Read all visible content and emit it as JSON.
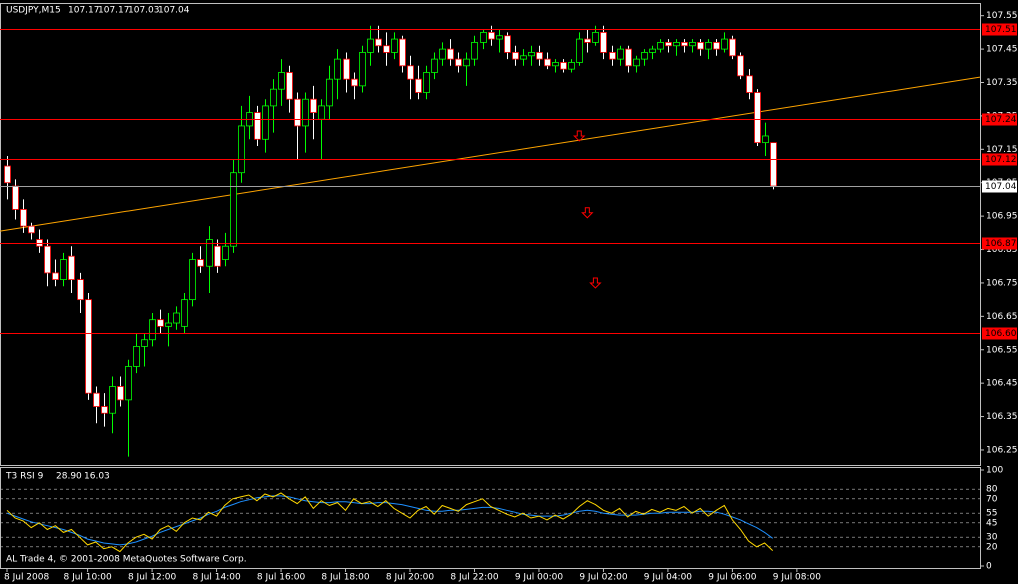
{
  "chart_data": [
    {
      "type": "candlestick",
      "title": "USDJPY,M15",
      "up_color": "#00ff00",
      "down_color": "#ff0000",
      "open": [
        107.1,
        107.04,
        106.97,
        106.92,
        106.88,
        106.86,
        106.78,
        106.76,
        106.83,
        106.76,
        106.7,
        106.42,
        106.38,
        106.36,
        106.44,
        106.4,
        106.5,
        106.56,
        106.58,
        106.64,
        106.62,
        106.63,
        106.62,
        106.7,
        106.82,
        106.8,
        106.86,
        106.82,
        106.86,
        107.08,
        107.22,
        107.26,
        107.18,
        107.28,
        107.33,
        107.38,
        107.3,
        107.22,
        107.3,
        107.24,
        107.28,
        107.36,
        107.42,
        107.36,
        107.34,
        107.44,
        107.48,
        107.46,
        107.44,
        107.48,
        107.4,
        107.36,
        107.32,
        107.38,
        107.42,
        107.45,
        107.42,
        107.4,
        107.42,
        107.47,
        107.5,
        107.48,
        107.49,
        107.44,
        107.42,
        107.43,
        107.44,
        107.42,
        107.4,
        107.41,
        107.39,
        107.41,
        107.48,
        107.47,
        107.5,
        107.44,
        107.42,
        107.45,
        107.4,
        107.42,
        107.44,
        107.45,
        107.47,
        107.46,
        107.47,
        107.46,
        107.47,
        107.45,
        107.47,
        107.45,
        107.48,
        107.43,
        107.37,
        107.32,
        107.17,
        107.17
      ],
      "high": [
        107.13,
        107.06,
        107.0,
        106.93,
        106.91,
        106.88,
        106.82,
        106.84,
        106.86,
        106.78,
        106.72,
        106.44,
        106.42,
        106.47,
        106.47,
        106.52,
        106.6,
        106.6,
        106.66,
        106.67,
        106.66,
        106.68,
        106.72,
        106.84,
        106.86,
        106.92,
        106.88,
        106.9,
        107.12,
        107.28,
        107.31,
        107.28,
        107.3,
        107.36,
        107.42,
        107.4,
        107.32,
        107.32,
        107.34,
        107.3,
        107.4,
        107.45,
        107.44,
        107.38,
        107.46,
        107.52,
        107.52,
        107.5,
        107.5,
        107.49,
        107.43,
        107.4,
        107.4,
        107.44,
        107.47,
        107.48,
        107.44,
        107.44,
        107.49,
        107.51,
        107.52,
        107.51,
        107.5,
        107.46,
        107.45,
        107.46,
        107.46,
        107.44,
        107.42,
        107.42,
        107.42,
        107.5,
        107.51,
        107.52,
        107.52,
        107.46,
        107.46,
        107.46,
        107.43,
        107.45,
        107.46,
        107.48,
        107.48,
        107.48,
        107.48,
        107.48,
        107.48,
        107.48,
        107.48,
        107.5,
        107.49,
        107.44,
        107.39,
        107.33,
        107.23,
        107.17
      ],
      "low": [
        107.0,
        106.94,
        106.9,
        106.88,
        106.84,
        106.74,
        106.74,
        106.74,
        106.72,
        106.66,
        106.4,
        106.33,
        106.32,
        106.3,
        106.38,
        106.23,
        106.48,
        106.5,
        106.56,
        106.6,
        106.56,
        106.61,
        106.6,
        106.68,
        106.78,
        106.72,
        106.78,
        106.8,
        106.84,
        107.05,
        107.18,
        107.16,
        107.14,
        107.2,
        107.28,
        107.26,
        107.12,
        107.14,
        107.18,
        107.12,
        107.24,
        107.3,
        107.32,
        107.3,
        107.32,
        107.4,
        107.44,
        107.4,
        107.42,
        107.38,
        107.3,
        107.3,
        107.3,
        107.36,
        107.4,
        107.4,
        107.38,
        107.34,
        107.4,
        107.45,
        107.46,
        107.44,
        107.42,
        107.4,
        107.4,
        107.4,
        107.4,
        107.39,
        107.38,
        107.38,
        107.38,
        107.4,
        107.44,
        107.46,
        107.42,
        107.4,
        107.4,
        107.38,
        107.38,
        107.4,
        107.42,
        107.44,
        107.44,
        107.43,
        107.44,
        107.44,
        107.43,
        107.42,
        107.43,
        107.44,
        107.42,
        107.36,
        107.3,
        107.16,
        107.13,
        107.03
      ],
      "close": [
        107.05,
        106.97,
        106.92,
        106.9,
        106.86,
        106.78,
        106.76,
        106.82,
        106.76,
        106.7,
        106.42,
        106.38,
        106.36,
        106.44,
        106.4,
        106.5,
        106.56,
        106.58,
        106.64,
        106.62,
        106.63,
        106.66,
        106.7,
        106.82,
        106.8,
        106.88,
        106.8,
        106.86,
        107.08,
        107.22,
        107.26,
        107.18,
        107.28,
        107.33,
        107.38,
        107.3,
        107.22,
        107.3,
        107.26,
        107.28,
        107.36,
        107.42,
        107.36,
        107.34,
        107.44,
        107.48,
        107.46,
        107.44,
        107.48,
        107.4,
        107.36,
        107.32,
        107.38,
        107.42,
        107.45,
        107.42,
        107.4,
        107.42,
        107.47,
        107.5,
        107.48,
        107.49,
        107.44,
        107.42,
        107.43,
        107.44,
        107.42,
        107.4,
        107.41,
        107.39,
        107.41,
        107.48,
        107.47,
        107.5,
        107.44,
        107.42,
        107.45,
        107.4,
        107.42,
        107.44,
        107.45,
        107.47,
        107.46,
        107.47,
        107.46,
        107.47,
        107.45,
        107.47,
        107.45,
        107.48,
        107.43,
        107.37,
        107.32,
        107.17,
        107.19,
        107.04
      ],
      "xlim": [
        -0.87,
        120.72
      ],
      "xticks": [
        {
          "value": 0,
          "label": "8 Jul 2008"
        },
        {
          "value": 10,
          "label": "8 Jul 10:00"
        },
        {
          "value": 18,
          "label": "8 Jul 12:00"
        },
        {
          "value": 26,
          "label": "8 Jul 14:00"
        },
        {
          "value": 34,
          "label": "8 Jul 16:00"
        },
        {
          "value": 42,
          "label": "8 Jul 18:00"
        },
        {
          "value": 50,
          "label": "8 Jul 20:00"
        },
        {
          "value": 58,
          "label": "8 Jul 22:00"
        },
        {
          "value": 66,
          "label": "9 Jul 00:00"
        },
        {
          "value": 74,
          "label": "9 Jul 02:00"
        },
        {
          "value": 82,
          "label": "9 Jul 04:00"
        },
        {
          "value": 90,
          "label": "9 Jul 06:00"
        },
        {
          "value": 98,
          "label": "9 Jul 08:00"
        }
      ],
      "ylim": [
        106.208,
        107.585
      ],
      "yticks": [
        107.55,
        107.45,
        107.35,
        107.25,
        107.15,
        107.05,
        106.95,
        106.85,
        106.75,
        106.65,
        106.55,
        106.45,
        106.35,
        106.25
      ],
      "levels": {
        "color": "#ff0000",
        "values": [
          107.51,
          107.24,
          107.12,
          106.87,
          {
            "value": 106.6,
            "label": "106.60"
          }
        ]
      },
      "current_price": {
        "color": "#a0a0a0",
        "value": 107.04
      },
      "trendline": {
        "color": "#ffa500",
        "x": [
          -0.87,
          120.72
        ],
        "y": [
          106.905,
          107.366
        ]
      },
      "arrows": {
        "color": "#ff0000",
        "x": [
          71,
          72,
          73
        ],
        "y": [
          107.19,
          106.96,
          106.75
        ]
      }
    },
    {
      "type": "line",
      "title": "T3 RSI 9",
      "readout": [
        {
          "value": 28.9,
          "label": "28.90"
        },
        16.03
      ],
      "series": [
        {
          "color": "#1e90ff",
          "values": [
            55,
            52,
            49,
            46,
            44,
            42,
            40,
            38,
            35,
            32,
            28,
            26,
            24,
            23,
            22,
            23,
            25,
            28,
            31,
            35,
            38,
            41,
            44,
            47,
            50,
            54,
            57,
            61,
            64,
            67,
            69,
            71,
            72,
            73,
            73,
            72,
            70,
            68,
            67,
            66,
            66,
            67,
            67,
            66,
            65,
            65,
            66,
            66,
            65,
            64,
            62,
            60,
            58,
            57,
            57,
            58,
            58,
            59,
            60,
            61,
            61,
            60,
            58,
            56,
            54,
            53,
            52,
            52,
            52,
            53,
            55,
            57,
            58,
            57,
            55,
            54,
            53,
            53,
            53,
            54,
            55,
            55,
            56,
            56,
            56,
            56,
            57,
            57,
            56,
            54,
            51,
            48,
            44,
            40,
            35,
            28.9
          ]
        },
        {
          "color": "#ffd700",
          "values": [
            58,
            50,
            47,
            40,
            45,
            38,
            42,
            35,
            38,
            30,
            22,
            25,
            18,
            20,
            15,
            24,
            30,
            33,
            28,
            38,
            42,
            36,
            45,
            50,
            48,
            56,
            52,
            63,
            70,
            72,
            74,
            68,
            75,
            72,
            76,
            70,
            65,
            72,
            60,
            68,
            63,
            66,
            58,
            70,
            65,
            67,
            62,
            68,
            60,
            55,
            50,
            58,
            62,
            54,
            63,
            60,
            57,
            64,
            67,
            70,
            62,
            58,
            54,
            51,
            55,
            50,
            52,
            48,
            53,
            49,
            54,
            62,
            68,
            64,
            58,
            55,
            60,
            51,
            57,
            54,
            59,
            56,
            60,
            58,
            62,
            55,
            60,
            52,
            58,
            63,
            48,
            38,
            26,
            20,
            24,
            16.03
          ]
        }
      ],
      "ylim": [
        0,
        100
      ],
      "yticks": [
        100,
        80,
        70,
        55,
        45,
        30,
        20,
        0
      ]
    }
  ],
  "footer": "AL Trade 4, © 2001-2008 MetaQuotes Software Corp."
}
